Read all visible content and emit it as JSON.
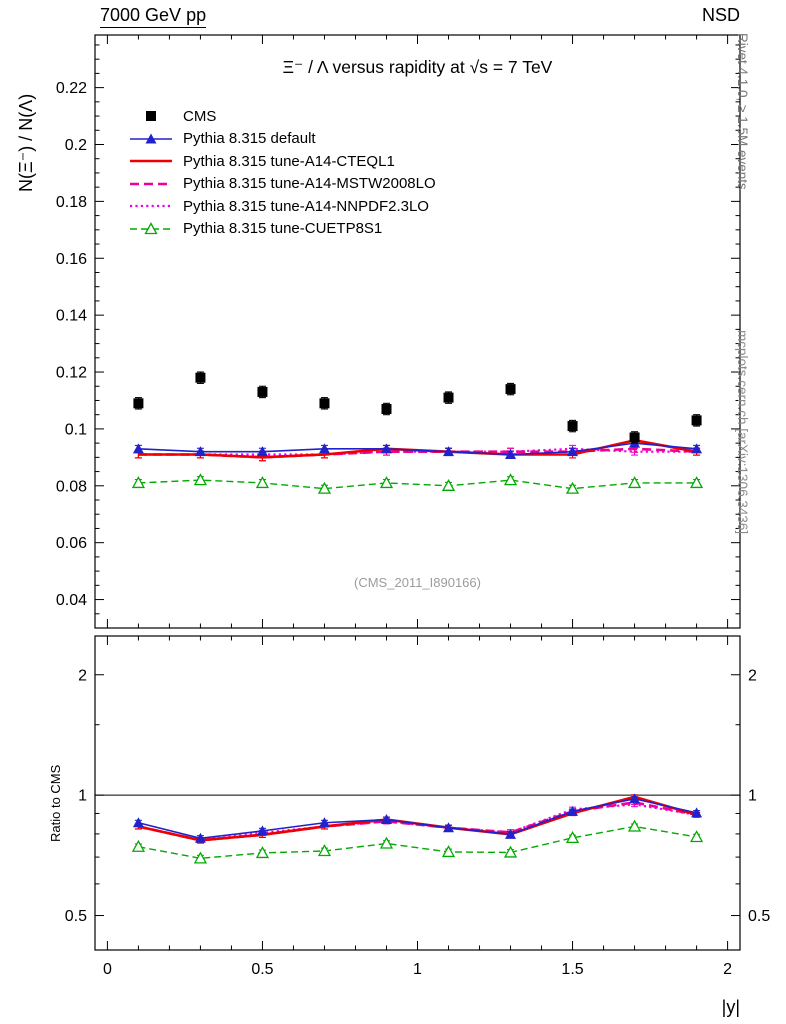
{
  "header": {
    "left": "7000 GeV pp",
    "right": "NSD"
  },
  "side_labels": {
    "top_right": "Rivet 4.1.0, ≥ 1.5M events",
    "bottom_right": "mcplots.cern.ch [arXiv:1306.3436]"
  },
  "watermark": "(CMS_2011_I890166)",
  "chart_data": {
    "type": "line",
    "title": "Ξ⁻ / Λ versus rapidity at √s = 7 TeV",
    "xlabel": "|y|",
    "xlim": [
      -0.04,
      2.04
    ],
    "xticks": [
      0,
      0.5,
      1,
      1.5,
      2
    ],
    "xtick_labels": [
      "0",
      "0.5",
      "1",
      "1.5",
      "2"
    ],
    "x_minor_step": 0.1,
    "x": [
      0.1,
      0.3,
      0.5,
      0.7,
      0.9,
      1.1,
      1.3,
      1.5,
      1.7,
      1.9
    ],
    "legend_position": "top-left-inside",
    "grid": false,
    "panels": [
      {
        "name": "main",
        "ylabel": "N(Ξ⁻) / N(Λ)",
        "yscale": "linear",
        "ylim": [
          0.03,
          0.2385
        ],
        "yticks": [
          0.04,
          0.06,
          0.08,
          0.1,
          0.12,
          0.14,
          0.16,
          0.18,
          0.2,
          0.22
        ],
        "ytick_labels": [
          "0.04",
          "0.06",
          "0.08",
          "0.1",
          "0.12",
          "0.14",
          "0.16",
          "0.18",
          "0.2",
          "0.22"
        ]
      },
      {
        "name": "ratio",
        "ylabel": "Ratio to CMS",
        "yscale": "log",
        "ylim": [
          0.41,
          2.5
        ],
        "yticks": [
          0.5,
          1,
          2
        ],
        "ytick_labels": [
          "0.5",
          "1",
          "2"
        ],
        "ref_line": 1
      }
    ],
    "series": [
      {
        "name": "CMS",
        "color": "#000000",
        "line": "none",
        "width": 0,
        "marker": "square-filled",
        "err": 0.002,
        "values": [
          0.109,
          0.118,
          0.113,
          0.109,
          0.107,
          0.111,
          0.114,
          0.101,
          0.097,
          0.103
        ],
        "ratio": null,
        "ratio_err": null
      },
      {
        "name": "Pythia 8.315 default",
        "color": "#2222cc",
        "line": "solid",
        "width": 1.6,
        "marker": "triangle-filled",
        "err": 0.0012,
        "values": [
          0.093,
          0.092,
          0.092,
          0.093,
          0.093,
          0.092,
          0.091,
          0.092,
          0.095,
          0.093
        ],
        "ratio": [
          0.853,
          0.78,
          0.814,
          0.853,
          0.869,
          0.829,
          0.798,
          0.911,
          0.979,
          0.903
        ],
        "ratio_err": 0.012
      },
      {
        "name": "Pythia 8.315 tune-A14-CTEQL1",
        "color": "#ee0000",
        "line": "solid",
        "width": 2.6,
        "marker": "none",
        "err": 0.0012,
        "values": [
          0.091,
          0.091,
          0.09,
          0.091,
          0.093,
          0.092,
          0.091,
          0.091,
          0.096,
          0.092
        ],
        "ratio": [
          0.835,
          0.771,
          0.796,
          0.835,
          0.869,
          0.829,
          0.798,
          0.901,
          0.99,
          0.893
        ],
        "ratio_err": 0.012
      },
      {
        "name": "Pythia 8.315 tune-A14-MSTW2008LO",
        "color": "#ee0099",
        "line": "dashed",
        "width": 2.6,
        "marker": "none",
        "err": 0.0012,
        "values": [
          0.091,
          0.091,
          0.09,
          0.091,
          0.092,
          0.092,
          0.092,
          0.092,
          0.093,
          0.092
        ],
        "ratio": [
          0.835,
          0.771,
          0.796,
          0.835,
          0.86,
          0.829,
          0.807,
          0.911,
          0.959,
          0.893
        ],
        "ratio_err": 0.012
      },
      {
        "name": "Pythia 8.315 tune-A14-NNPDF2.3LO",
        "color": "#ee00ee",
        "line": "dotted",
        "width": 2.2,
        "marker": "none",
        "err": 0.0012,
        "values": [
          0.091,
          0.091,
          0.091,
          0.091,
          0.092,
          0.092,
          0.092,
          0.093,
          0.092,
          0.092
        ],
        "ratio": [
          0.835,
          0.771,
          0.805,
          0.835,
          0.86,
          0.829,
          0.807,
          0.921,
          0.948,
          0.893
        ],
        "ratio_err": 0.012
      },
      {
        "name": "Pythia 8.315 tune-CUETP8S1",
        "color": "#00aa00",
        "line": "dashed-fine",
        "width": 1.4,
        "marker": "triangle-open",
        "err": 0.0012,
        "values": [
          0.081,
          0.082,
          0.081,
          0.079,
          0.081,
          0.08,
          0.082,
          0.079,
          0.081,
          0.081
        ],
        "ratio": [
          0.743,
          0.695,
          0.717,
          0.725,
          0.757,
          0.721,
          0.719,
          0.782,
          0.835,
          0.786
        ],
        "ratio_err": 0.012
      }
    ]
  }
}
